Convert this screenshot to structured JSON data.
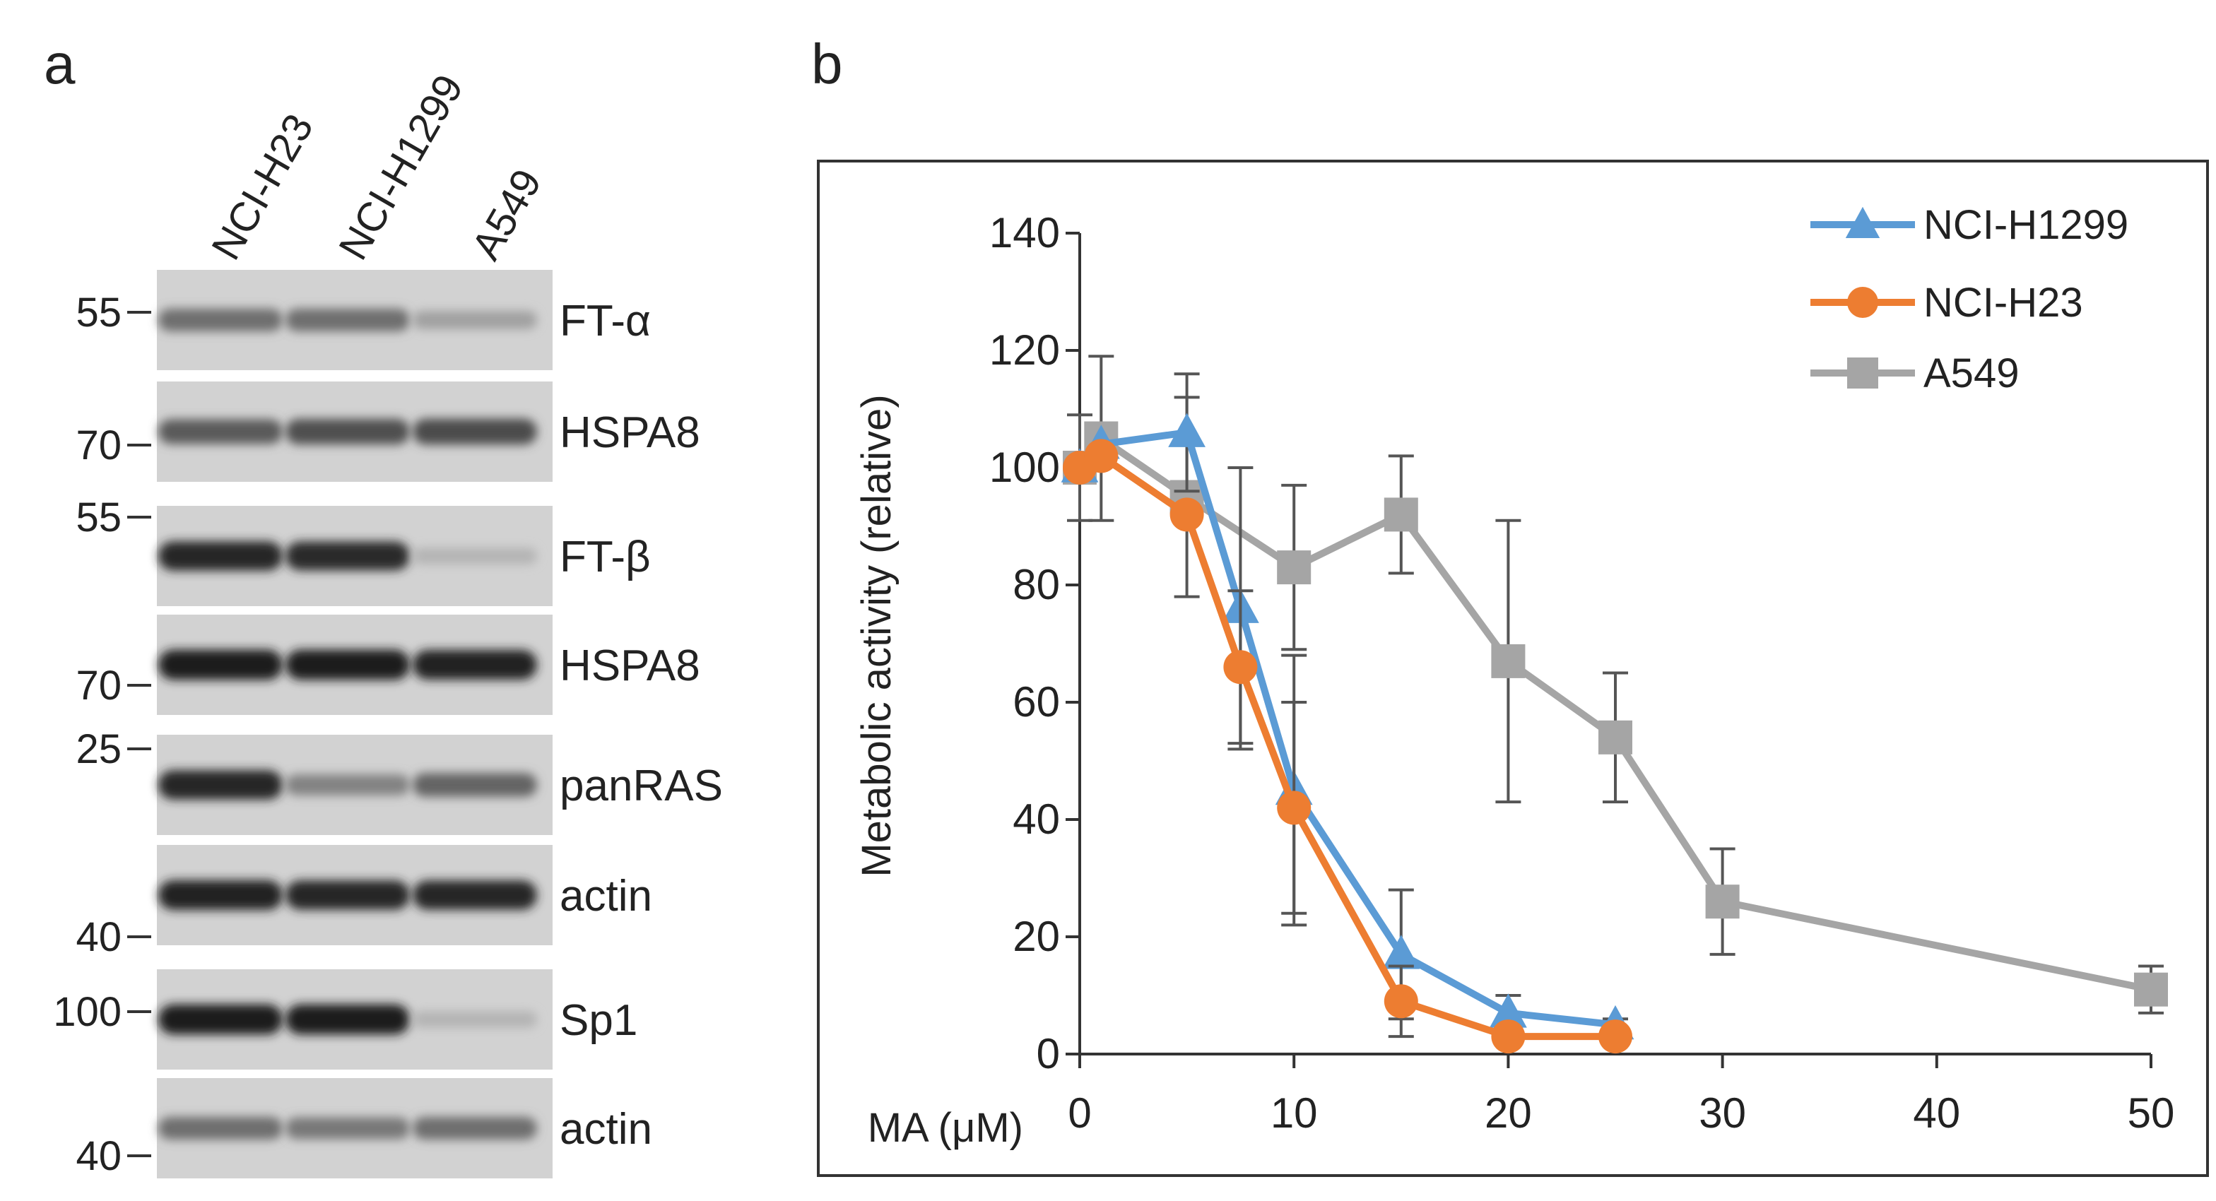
{
  "panels": {
    "a": "a",
    "b": "b"
  },
  "blot": {
    "lanes": [
      "NCI-H23",
      "NCI-H1299",
      "A549"
    ],
    "strips": [
      {
        "label": "FT-α",
        "marker": "55",
        "band_intensity": [
          0.55,
          0.55,
          0.3
        ]
      },
      {
        "label": "HSPA8",
        "marker": "70",
        "band_intensity": [
          0.65,
          0.7,
          0.72
        ]
      },
      {
        "label": "FT-β",
        "marker": "55",
        "band_intensity": [
          0.9,
          0.88,
          0.2
        ]
      },
      {
        "label": "HSPA8",
        "marker": "70",
        "band_intensity": [
          0.95,
          0.95,
          0.92
        ]
      },
      {
        "label": "panRAS",
        "marker": "25",
        "band_intensity": [
          0.9,
          0.45,
          0.6
        ]
      },
      {
        "label": "actin",
        "marker": "40",
        "band_intensity": [
          0.92,
          0.9,
          0.9
        ]
      },
      {
        "label": "Sp1",
        "marker": "100",
        "band_intensity": [
          0.95,
          0.95,
          0.2
        ]
      },
      {
        "label": "actin",
        "marker": "40",
        "band_intensity": [
          0.55,
          0.5,
          0.55
        ]
      }
    ]
  },
  "chart_data": {
    "type": "line",
    "xlabel": "MA (μM)",
    "ylabel": "Metabolic activity (relative)",
    "xlim": [
      0,
      50
    ],
    "ylim": [
      0,
      140
    ],
    "xticks": [
      0,
      10,
      20,
      30,
      40,
      50
    ],
    "yticks": [
      0,
      20,
      40,
      60,
      80,
      100,
      120,
      140
    ],
    "grid": false,
    "legend_position": "top-right",
    "series": [
      {
        "name": "NCI-H1299",
        "color": "#5b9bd5",
        "marker": "triangle",
        "x": [
          0,
          1,
          5,
          7.5,
          10,
          15,
          20,
          25
        ],
        "y": [
          100,
          104,
          106,
          76,
          45,
          17,
          7,
          5
        ],
        "err": [
          0,
          0,
          10,
          24,
          23,
          11,
          3,
          1
        ]
      },
      {
        "name": "NCI-H23",
        "color": "#ed7d31",
        "marker": "circle",
        "x": [
          0,
          1,
          5,
          7.5,
          10,
          15,
          20,
          25
        ],
        "y": [
          100,
          102,
          92,
          66,
          42,
          9,
          3,
          3
        ],
        "err": [
          0,
          0,
          0,
          13,
          18,
          6,
          1,
          1
        ]
      },
      {
        "name": "A549",
        "color": "#a5a5a5",
        "marker": "square",
        "x": [
          0,
          1,
          5,
          10,
          15,
          20,
          25,
          30,
          50
        ],
        "y": [
          100,
          105,
          95,
          83,
          92,
          67,
          54,
          26,
          11
        ],
        "err": [
          9,
          14,
          17,
          14,
          10,
          24,
          11,
          9,
          4
        ]
      }
    ]
  }
}
